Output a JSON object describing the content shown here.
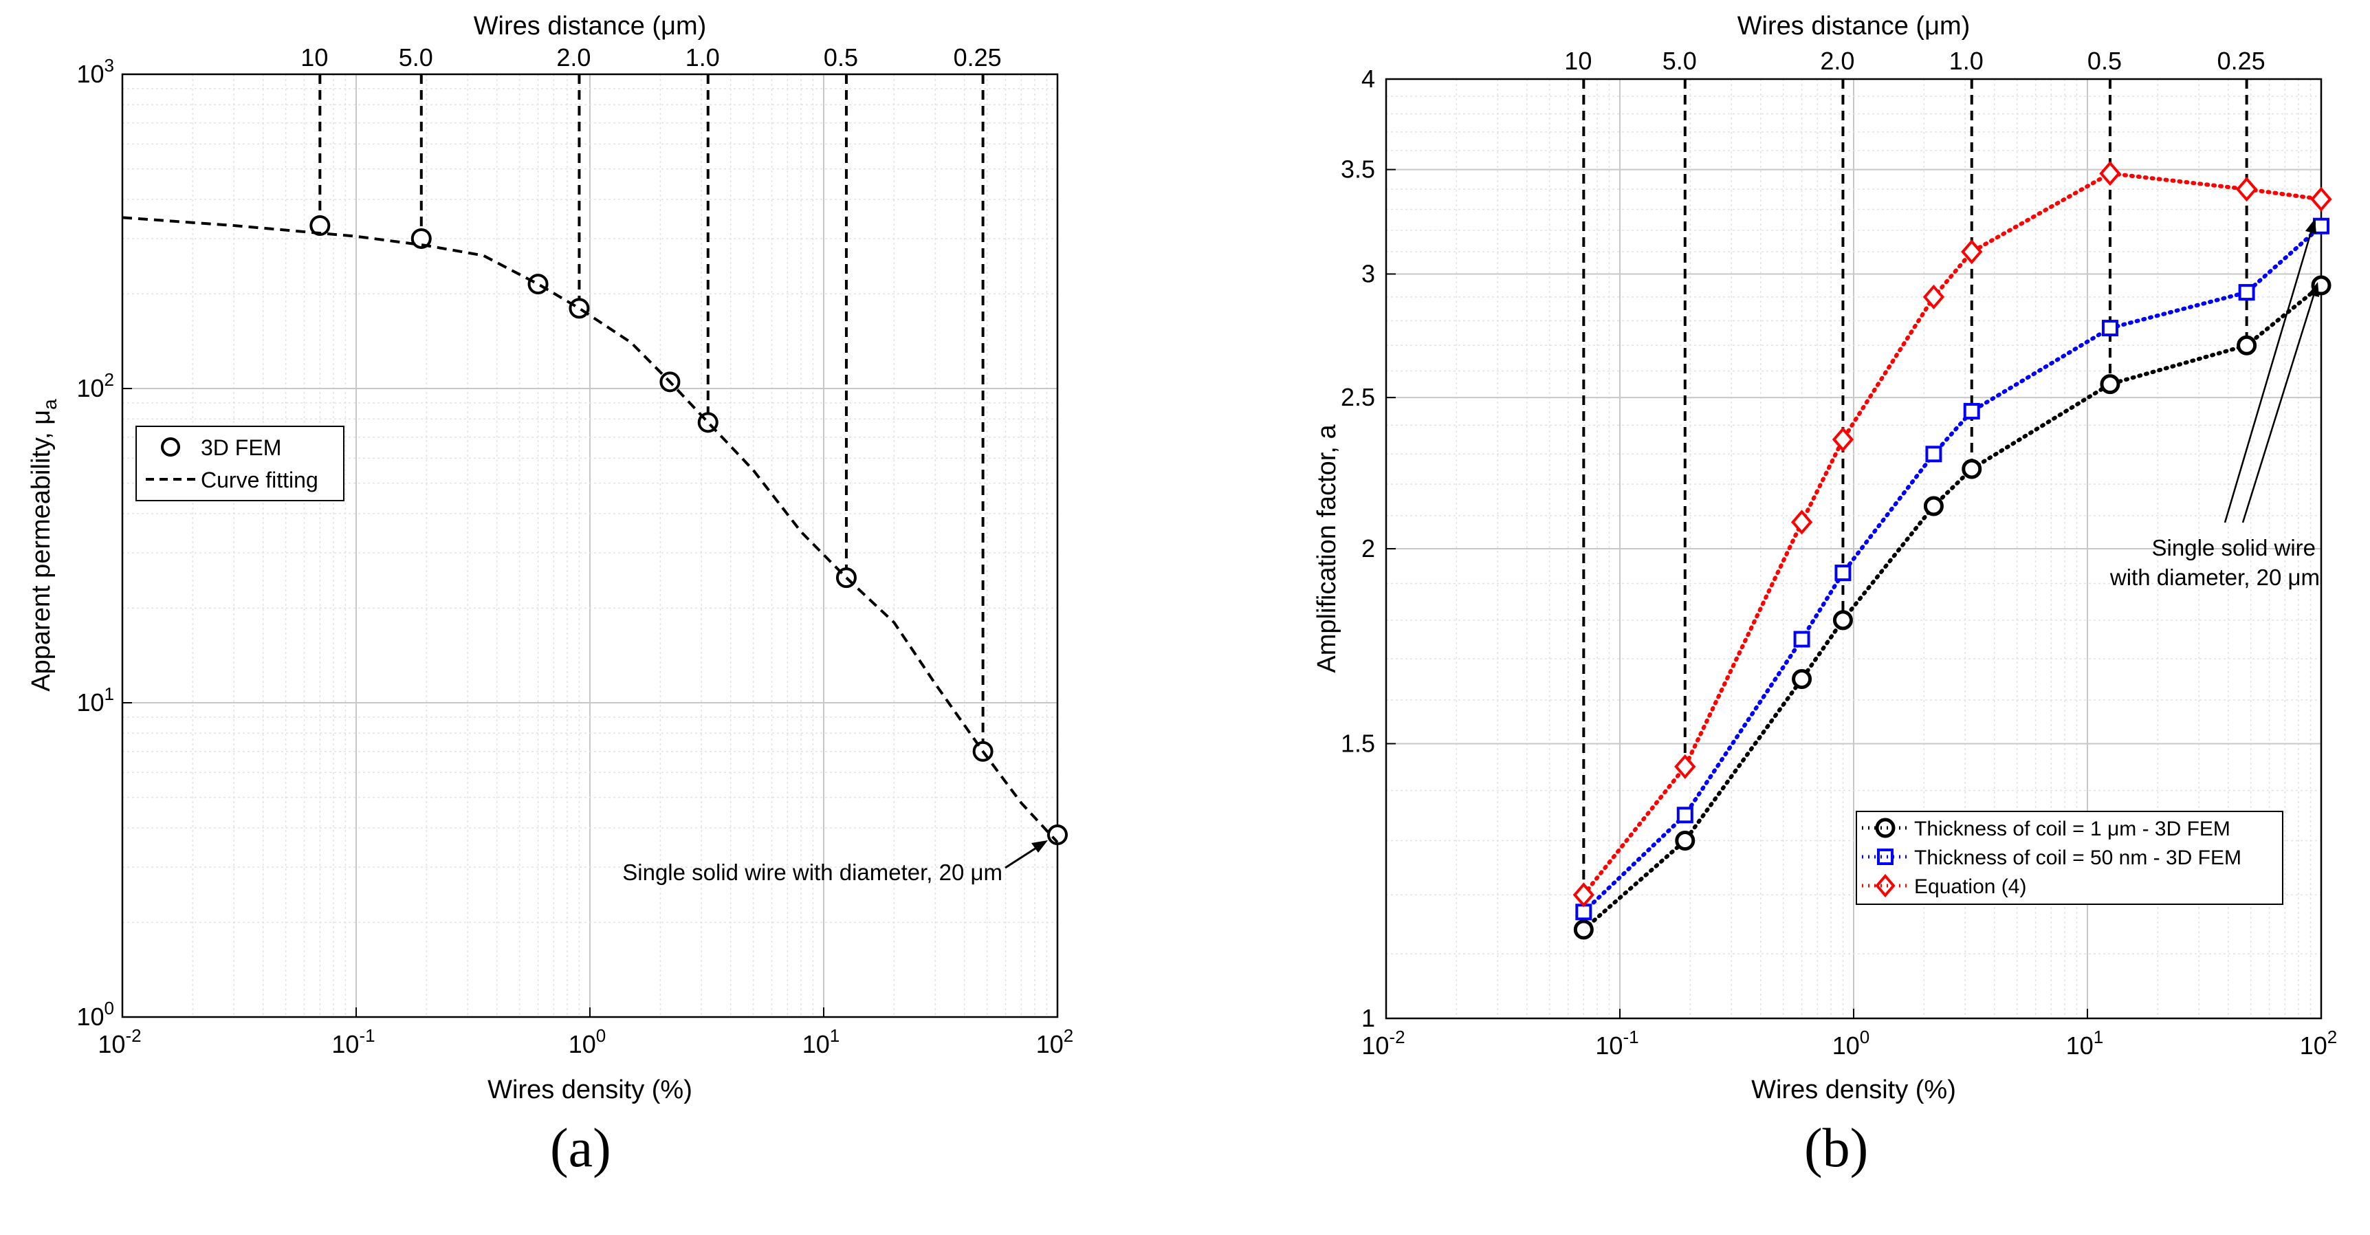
{
  "chart_data": [
    {
      "id": "a",
      "panel_label": "(a)",
      "type": "line",
      "x_scale": "log",
      "y_scale": "log",
      "xlabel": "Wires density (%)",
      "ylabel": "Apparent permeability, μ",
      "ylabel_sub": "a",
      "xlim": [
        0.01,
        100
      ],
      "ylim": [
        1,
        1000
      ],
      "x_ticks": [
        {
          "v": 0.01,
          "exp": "-2"
        },
        {
          "v": 0.1,
          "exp": "-1"
        },
        {
          "v": 1,
          "exp": "0"
        },
        {
          "v": 10,
          "exp": "1"
        },
        {
          "v": 100,
          "exp": "2"
        }
      ],
      "y_ticks": [
        {
          "v": 1,
          "exp": "0"
        },
        {
          "v": 10,
          "exp": "1"
        },
        {
          "v": 100,
          "exp": "2"
        },
        {
          "v": 1000,
          "exp": "3"
        }
      ],
      "tick_base": "10",
      "grid": true,
      "top_axis": {
        "label": "Wires distance (μm)",
        "ticks": [
          {
            "label": "10",
            "x": 0.07
          },
          {
            "label": "5.0",
            "x": 0.19
          },
          {
            "label": "2.0",
            "x": 0.9
          },
          {
            "label": "1.0",
            "x": 3.2
          },
          {
            "label": "0.5",
            "x": 12.5
          },
          {
            "label": "0.25",
            "x": 48
          }
        ]
      },
      "guide_lines": [
        {
          "x": 0.07,
          "y": 330
        },
        {
          "x": 0.19,
          "y": 300
        },
        {
          "x": 0.9,
          "y": 180
        },
        {
          "x": 3.2,
          "y": 78
        },
        {
          "x": 12.5,
          "y": 25
        },
        {
          "x": 48,
          "y": 7
        }
      ],
      "series": [
        {
          "name": "3D FEM",
          "style": "markers",
          "marker": "circle",
          "color": "#000000",
          "x": [
            0.07,
            0.19,
            0.6,
            0.9,
            2.2,
            3.2,
            12.5,
            48,
            100
          ],
          "y": [
            330,
            300,
            215,
            180,
            105,
            78,
            25,
            7,
            3.8
          ]
        },
        {
          "name": "Curve fitting",
          "style": "dashed",
          "color": "#000000",
          "x": [
            0.01,
            0.03,
            0.1,
            0.2,
            0.35,
            0.6,
            0.9,
            1.5,
            2.2,
            3.2,
            5,
            8,
            12.5,
            20,
            30,
            48,
            70,
            100
          ],
          "y": [
            350,
            330,
            305,
            285,
            265,
            215,
            180,
            140,
            105,
            78,
            55,
            35,
            25,
            18,
            11.5,
            7,
            4.8,
            3.6
          ]
        }
      ],
      "legend_position": "left-middle",
      "annotation": {
        "text": "Single solid wire with diameter, 20 μm",
        "x": 100,
        "y": 3.8
      }
    },
    {
      "id": "b",
      "panel_label": "(b)",
      "type": "line",
      "x_scale": "log",
      "y_scale": "log",
      "xlabel": "Wires density (%)",
      "ylabel": "Amplification factor, a",
      "xlim": [
        0.01,
        100
      ],
      "ylim": [
        1,
        4
      ],
      "x_ticks": [
        {
          "v": 0.01,
          "exp": "-2"
        },
        {
          "v": 0.1,
          "exp": "-1"
        },
        {
          "v": 1,
          "exp": "0"
        },
        {
          "v": 10,
          "exp": "1"
        },
        {
          "v": 100,
          "exp": "2"
        }
      ],
      "tick_base": "10",
      "y_ticks": [
        {
          "v": 1,
          "label": "1"
        },
        {
          "v": 1.5,
          "label": "1.5"
        },
        {
          "v": 2,
          "label": "2"
        },
        {
          "v": 2.5,
          "label": "2.5"
        },
        {
          "v": 3,
          "label": "3"
        },
        {
          "v": 3.5,
          "label": "3.5"
        },
        {
          "v": 4,
          "label": "4"
        }
      ],
      "grid": true,
      "top_axis": {
        "label": "Wires distance (μm)",
        "ticks": [
          {
            "label": "10",
            "x": 0.07
          },
          {
            "label": "5.0",
            "x": 0.19
          },
          {
            "label": "2.0",
            "x": 0.9
          },
          {
            "label": "1.0",
            "x": 3.2
          },
          {
            "label": "0.5",
            "x": 12.5
          },
          {
            "label": "0.25",
            "x": 48
          }
        ]
      },
      "guide_lines": [
        {
          "x": 0.07,
          "y": 1.2
        },
        {
          "x": 0.19,
          "y": 1.45
        },
        {
          "x": 0.9,
          "y": 1.8
        },
        {
          "x": 3.2,
          "y": 2.25
        },
        {
          "x": 12.5,
          "y": 2.55
        },
        {
          "x": 48,
          "y": 2.7
        }
      ],
      "series": [
        {
          "name": "Thickness of coil = 1 μm - 3D FEM",
          "style": "dotted-markers",
          "marker": "circle",
          "color": "#000000",
          "x": [
            0.07,
            0.19,
            0.6,
            0.9,
            2.2,
            3.2,
            12.5,
            48,
            100
          ],
          "y": [
            1.14,
            1.3,
            1.65,
            1.8,
            2.13,
            2.25,
            2.55,
            2.7,
            2.95
          ]
        },
        {
          "name": "Thickness of coil = 50 nm - 3D FEM",
          "style": "dotted-markers",
          "marker": "square",
          "color": "#0000ff",
          "x": [
            0.07,
            0.19,
            0.6,
            0.9,
            2.2,
            3.2,
            12.5,
            48,
            100
          ],
          "y": [
            1.17,
            1.35,
            1.75,
            1.93,
            2.3,
            2.45,
            2.77,
            2.92,
            3.22
          ]
        },
        {
          "name": "Equation (4)",
          "style": "dotted-markers",
          "marker": "diamond",
          "color": "#ff0000",
          "x": [
            0.07,
            0.19,
            0.6,
            0.9,
            2.2,
            3.2,
            12.5,
            48,
            100
          ],
          "y": [
            1.2,
            1.45,
            2.08,
            2.35,
            2.9,
            3.1,
            3.48,
            3.4,
            3.35
          ]
        }
      ],
      "legend_position": "bottom-right",
      "annotation": {
        "text_line1": "Single solid wire",
        "text_line2": "with diameter, 20 μm",
        "targets": [
          {
            "x": 100,
            "y": 2.95
          },
          {
            "x": 100,
            "y": 3.22
          }
        ]
      }
    }
  ]
}
